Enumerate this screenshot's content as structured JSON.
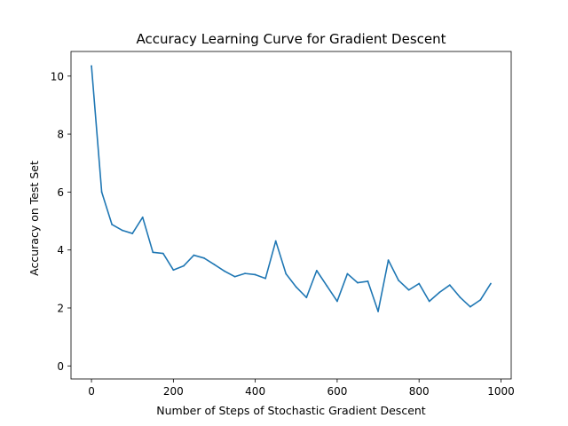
{
  "chart_data": {
    "type": "line",
    "title": "Accuracy Learning Curve for Gradient Descent",
    "xlabel": "Number of Steps of Stochastic Gradient Descent",
    "ylabel": "Accuracy on Test Set",
    "xlim": [
      -50,
      1025
    ],
    "ylim": [
      -0.45,
      10.85
    ],
    "xticks": [
      0,
      200,
      400,
      600,
      800,
      1000
    ],
    "yticks": [
      0,
      2,
      4,
      6,
      8,
      10
    ],
    "grid": false,
    "series": [
      {
        "color": "#1f77b4",
        "x": [
          0,
          25,
          50,
          75,
          100,
          125,
          150,
          175,
          200,
          225,
          250,
          275,
          300,
          325,
          350,
          375,
          400,
          425,
          450,
          475,
          500,
          525,
          550,
          575,
          600,
          625,
          650,
          675,
          700,
          725,
          750,
          775,
          800,
          825,
          850,
          875,
          900,
          925,
          950,
          975
        ],
        "y": [
          10.35,
          6.0,
          4.88,
          4.68,
          4.57,
          5.13,
          3.92,
          3.88,
          3.31,
          3.45,
          3.82,
          3.72,
          3.5,
          3.27,
          3.08,
          3.19,
          3.15,
          3.02,
          4.31,
          3.18,
          2.72,
          2.36,
          3.29,
          2.76,
          2.23,
          3.18,
          2.87,
          2.92,
          1.88,
          3.65,
          2.95,
          2.62,
          2.84,
          2.23,
          2.54,
          2.79,
          2.37,
          2.04,
          2.28,
          2.84
        ]
      }
    ]
  }
}
